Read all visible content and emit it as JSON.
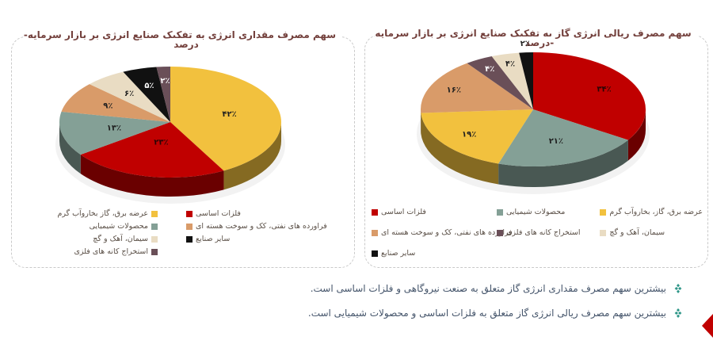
{
  "page": {
    "background": "#ffffff"
  },
  "chart_data": [
    {
      "id": "quantity-pie",
      "type": "pie",
      "title": "سهم مصرف مقداری انرژی به تفکیک صنایع انرژی بر بازار سرمایه- درصد",
      "legend_position": "bottom",
      "categories": [
        "عرضه برق، گاز بخاروآب گرم",
        "فلزات اساسی",
        "محصولات شیمیایی",
        "فراورده های نفتی، کک و سوخت هسته ای",
        "سیمان، آهک و گچ",
        "سایر صنایع",
        "استخراج کانه های فلزی"
      ],
      "values": [
        42,
        23,
        13,
        9,
        6,
        5,
        2
      ],
      "slices": [
        {
          "label": "عرضه برق، گاز بخاروآب گرم",
          "value": 42,
          "pct": "۴۲٪",
          "color": "#f2c13e",
          "label_color": "#1f1f1f"
        },
        {
          "label": "فلزات اساسی",
          "value": 23,
          "pct": "۲۳٪",
          "color": "#c00000",
          "label_color": "#2a0505"
        },
        {
          "label": "محصولات شیمیایی",
          "value": 13,
          "pct": "۱۳٪",
          "color": "#84a096",
          "label_color": "#1f1f1f"
        },
        {
          "label": "فراورده های نفتی، کک و سوخت هسته ای",
          "value": 9,
          "pct": "۹٪",
          "color": "#d99b69",
          "label_color": "#1f1f1f"
        },
        {
          "label": "سیمان، آهک و گچ",
          "value": 6,
          "pct": "۶٪",
          "color": "#e9dcc3",
          "label_color": "#1f1f1f"
        },
        {
          "label": "سایر صنایع",
          "value": 5,
          "pct": "۵٪",
          "color": "#111111",
          "label_color": "#ffffff"
        },
        {
          "label": "استخراج کانه های فلزی",
          "value": 2,
          "pct": "۲٪",
          "color": "#6a4f58",
          "label_color": "#ffffff"
        }
      ]
    },
    {
      "id": "rial-pie",
      "type": "pie",
      "title": "سهم مصرف ریالی انرژی گاز به تفکیک صنایع انرژی بر بازار سرمایه -درصد",
      "legend_position": "bottom",
      "categories": [
        "فلزات اساسی",
        "محصولات شیمیایی",
        "عرضه برق، گاز، بخاروآب گرم",
        "فراورده های نفتی، کک و سوخت هسته ای",
        "استخراج کانه های فلزی",
        "سیمان، آهک و گچ",
        "سایر صنایع"
      ],
      "values": [
        34,
        21,
        19,
        16,
        4,
        4,
        2
      ],
      "slices": [
        {
          "label": "فلزات اساسی",
          "value": 34,
          "pct": "۳۴٪",
          "color": "#c00000",
          "label_color": "#2a0505"
        },
        {
          "label": "محصولات شیمیایی",
          "value": 21,
          "pct": "۲۱٪",
          "color": "#84a096",
          "label_color": "#1f1f1f"
        },
        {
          "label": "عرضه برق، گاز، بخاروآب گرم",
          "value": 19,
          "pct": "۱۹٪",
          "color": "#f2c13e",
          "label_color": "#1f1f1f"
        },
        {
          "label": "فراورده های نفتی، کک و سوخت هسته ای",
          "value": 16,
          "pct": "۱۶٪",
          "color": "#d99b69",
          "label_color": "#1f1f1f"
        },
        {
          "label": "استخراج کانه های فلزی",
          "value": 4,
          "pct": "۴٪",
          "color": "#6a4f58",
          "label_color": "#ffffff"
        },
        {
          "label": "سیمان، آهک و گچ",
          "value": 4,
          "pct": "۴٪",
          "color": "#e9dcc3",
          "label_color": "#1f1f1f"
        },
        {
          "label": "سایر صنایع",
          "value": 2,
          "pct": "۲٪",
          "color": "#111111",
          "label_color": "#1f1f1f"
        }
      ]
    }
  ],
  "notes": {
    "bullet_color": "#2e9688",
    "text_color": "#44546a",
    "items": [
      {
        "text": "بیشترین سهم مصرف مقداری انرژی گاز متعلق به صنعت نیروگاهی و فلزات اساسی است."
      },
      {
        "text": "بیشترین سهم مصرف ریالی انرژی گاز متعلق به فلزات اساسی  و محصولات شیمیایی است."
      }
    ]
  },
  "decor": {
    "corner_arrow_color": "#c00000"
  }
}
